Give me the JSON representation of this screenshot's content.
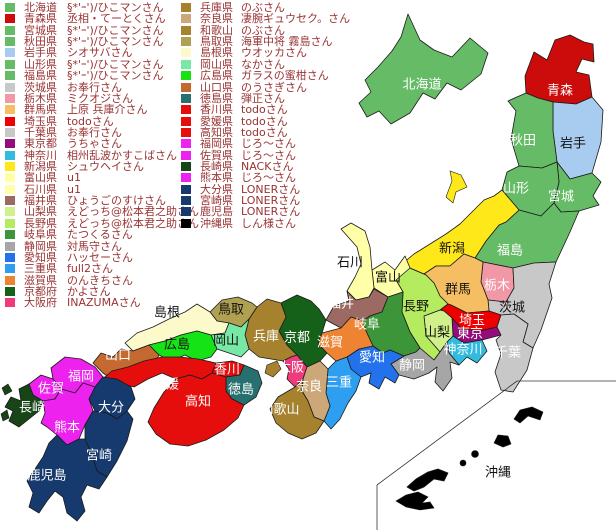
{
  "legend": {
    "text_color": "#993333",
    "columns": [
      {
        "items": [
          {
            "pref": "北海道",
            "owner": "§*'ｰ')/ひこマンさん",
            "color": "#66BB66"
          },
          {
            "pref": "青森県",
            "owner": "丞相・てーとくさん",
            "color": "#CC0B0B"
          },
          {
            "pref": "宮城県",
            "owner": "§*'ｰ')/ひこマンさん",
            "color": "#66BB66"
          },
          {
            "pref": "秋田県",
            "owner": "§*'ｰ')/ひこマンさん",
            "color": "#66BB66"
          },
          {
            "pref": "岩手県",
            "owner": "シオサバさん",
            "color": "#A8CCF0"
          },
          {
            "pref": "山形県",
            "owner": "§*'ｰ')/ひこマンさん",
            "color": "#66BB66"
          },
          {
            "pref": "福島県",
            "owner": "§*'ｰ')/ひこマンさん",
            "color": "#66BB66"
          },
          {
            "pref": "茨城県",
            "owner": "お奉行さん",
            "color": "#C8C8C8"
          },
          {
            "pref": "栃木県",
            "owner": "ミクオジさん",
            "color": "#F297A5"
          },
          {
            "pref": "群馬県",
            "owner": "上原 兵庫介さん",
            "color": "#F5BE62"
          },
          {
            "pref": "埼玉県",
            "owner": "todoさん",
            "color": "#EE0000"
          },
          {
            "pref": "千葉県",
            "owner": "お奉行さん",
            "color": "#C8C8C8"
          },
          {
            "pref": "東京都",
            "owner": "うちゃさん",
            "color": "#970C7C"
          },
          {
            "pref": "神奈川",
            "owner": "相州乱波かすこばさん",
            "color": "#33BBDD"
          },
          {
            "pref": "新潟県",
            "owner": "シュウヘイさん",
            "color": "#FFE81A"
          },
          {
            "pref": "富山県",
            "owner": "u1",
            "color": "#FFFFA8"
          },
          {
            "pref": "石川県",
            "owner": "u1",
            "color": "#FFFFA8"
          },
          {
            "pref": "福井県",
            "owner": "ひょうごのすけさん",
            "color": "#9C6A62"
          },
          {
            "pref": "山梨県",
            "owner": "えどっち@松本君之助さん",
            "color": "#CFF08A"
          },
          {
            "pref": "長野県",
            "owner": "えどっち@松本君之助さん",
            "color": "#B5EC5F"
          },
          {
            "pref": "岐阜県",
            "owner": "たつくるさん",
            "color": "#3C9639"
          },
          {
            "pref": "静岡県",
            "owner": "対馬守さん",
            "color": "#A6A6A6"
          },
          {
            "pref": "愛知県",
            "owner": "ハッセーさん",
            "color": "#2372EC"
          },
          {
            "pref": "三重県",
            "owner": "full2さん",
            "color": "#2E9FF0"
          },
          {
            "pref": "滋賀県",
            "owner": "のんきちさん",
            "color": "#EE8433"
          },
          {
            "pref": "京都府",
            "owner": "かよさん",
            "color": "#15611A"
          },
          {
            "pref": "大阪府",
            "owner": "INAZUMAさん",
            "color": "#EF3A7B"
          }
        ]
      },
      {
        "items": [
          {
            "pref": "兵庫県",
            "owner": "のぶさん",
            "color": "#A6812E"
          },
          {
            "pref": "奈良県",
            "owner": "凄腕ギュウセク。さん",
            "color": "#CCA878"
          },
          {
            "pref": "和歌山",
            "owner": "のぶさん",
            "color": "#A6812E"
          },
          {
            "pref": "鳥取県",
            "owner": "海軍中将 霧島さん",
            "color": "#B0A052"
          },
          {
            "pref": "島根県",
            "owner": "ウオッカさん",
            "color": "#FCF9CB"
          },
          {
            "pref": "岡山県",
            "owner": "なかさん",
            "color": "#77E8A5"
          },
          {
            "pref": "広島県",
            "owner": "ガラスの蜜柑さん",
            "color": "#16E316"
          },
          {
            "pref": "山口県",
            "owner": "のうさぎさん",
            "color": "#C4692F"
          },
          {
            "pref": "徳島県",
            "owner": "弾正さん",
            "color": "#287070"
          },
          {
            "pref": "香川県",
            "owner": "todoさん",
            "color": "#E60D0D"
          },
          {
            "pref": "愛媛県",
            "owner": "todoさん",
            "color": "#E60D0D"
          },
          {
            "pref": "高知県",
            "owner": "todoさん",
            "color": "#E60D0D"
          },
          {
            "pref": "福岡県",
            "owner": "じろ～さん",
            "color": "#EE22EE"
          },
          {
            "pref": "佐賀県",
            "owner": "じろ～さん",
            "color": "#EE22EE"
          },
          {
            "pref": "長崎県",
            "owner": "NACKさん",
            "color": "#174517"
          },
          {
            "pref": "熊本県",
            "owner": "じろ～さん",
            "color": "#EE22EE"
          },
          {
            "pref": "大分県",
            "owner": "LONERさん",
            "color": "#163A6E"
          },
          {
            "pref": "宮崎県",
            "owner": "LONERさん",
            "color": "#163A6E"
          },
          {
            "pref": "鹿児島",
            "owner": "LONERさん",
            "color": "#163A6E"
          },
          {
            "pref": "沖縄県",
            "owner": "しん様さん",
            "color": "#000000"
          }
        ]
      }
    ]
  },
  "map": {
    "border_color": "#1a1a1a",
    "regions": [
      {
        "id": "hokkaido",
        "label": "北海道",
        "color": "#66BB66",
        "label_color": "#FFFFFF"
      },
      {
        "id": "aomori",
        "label": "青森",
        "color": "#CC0B0B",
        "label_color": "#FFFFFF"
      },
      {
        "id": "iwate",
        "label": "岩手",
        "color": "#A8CCF0",
        "label_color": "#111111"
      },
      {
        "id": "akita",
        "label": "秋田",
        "color": "#66BB66",
        "label_color": "#FFFFFF"
      },
      {
        "id": "miyagi",
        "label": "宮城",
        "color": "#66BB66",
        "label_color": "#FFFFFF"
      },
      {
        "id": "yamagata",
        "label": "山形",
        "color": "#66BB66",
        "label_color": "#FFFFFF"
      },
      {
        "id": "fukushima",
        "label": "福島",
        "color": "#66BB66",
        "label_color": "#FFFFFF"
      },
      {
        "id": "niigata",
        "label": "新潟",
        "color": "#FFE81A",
        "label_color": "#111111"
      },
      {
        "id": "tochigi",
        "label": "栃木",
        "color": "#F297A5",
        "label_color": "#FFFFFF"
      },
      {
        "id": "ibaraki",
        "label": "茨城",
        "color": "#C8C8C8",
        "label_color": "#111111"
      },
      {
        "id": "gunma",
        "label": "群馬",
        "color": "#F5BE62",
        "label_color": "#111111"
      },
      {
        "id": "saitama",
        "label": "埼玉",
        "color": "#EE0000",
        "label_color": "#FFFFFF"
      },
      {
        "id": "tokyo",
        "label": "東京",
        "color": "#970C7C",
        "label_color": "#FFFFFF"
      },
      {
        "id": "kanagawa",
        "label": "神奈川",
        "color": "#33BBDD",
        "label_color": "#FFFFFF"
      },
      {
        "id": "chiba",
        "label": "千葉",
        "color": "#C8C8C8",
        "label_color": "#FFFFFF"
      },
      {
        "id": "yamanashi",
        "label": "山梨",
        "color": "#CFF08A",
        "label_color": "#111111"
      },
      {
        "id": "nagano",
        "label": "長野",
        "color": "#B5EC5F",
        "label_color": "#111111"
      },
      {
        "id": "toyama",
        "label": "富山",
        "color": "#FFFFA8",
        "label_color": "#111111"
      },
      {
        "id": "ishikawa",
        "label": "石川",
        "color": "#FFFFA8",
        "label_color": "#111111"
      },
      {
        "id": "fukui",
        "label": "福井",
        "color": "#9C6A62",
        "label_color": "#FFFFFF"
      },
      {
        "id": "gifu",
        "label": "岐阜",
        "color": "#3C9639",
        "label_color": "#FFFFFF"
      },
      {
        "id": "shizuoka",
        "label": "静岡",
        "color": "#A6A6A6",
        "label_color": "#FFFFFF"
      },
      {
        "id": "aichi",
        "label": "愛知",
        "color": "#2372EC",
        "label_color": "#FFFFFF"
      },
      {
        "id": "mie",
        "label": "三重",
        "color": "#2E9FF0",
        "label_color": "#FFFFFF"
      },
      {
        "id": "shiga",
        "label": "滋賀",
        "color": "#EE8433",
        "label_color": "#FFFFFF"
      },
      {
        "id": "kyoto",
        "label": "京都",
        "color": "#15611A",
        "label_color": "#FFFFFF"
      },
      {
        "id": "hyogo",
        "label": "兵庫",
        "color": "#A6812E",
        "label_color": "#FFFFFF"
      },
      {
        "id": "osaka",
        "label": "大阪",
        "color": "#EF3A7B",
        "label_color": "#FFFFFF"
      },
      {
        "id": "nara",
        "label": "奈良",
        "color": "#CCA878",
        "label_color": "#FFFFFF"
      },
      {
        "id": "wakayama",
        "label": "和歌山",
        "color": "#A6812E",
        "label_color": "#FFFFFF"
      },
      {
        "id": "tottori",
        "label": "鳥取",
        "color": "#B0A052",
        "label_color": "#111111"
      },
      {
        "id": "shimane",
        "label": "島根",
        "color": "#FCF9CB",
        "label_color": "#111111"
      },
      {
        "id": "okayama",
        "label": "岡山",
        "color": "#77E8A5",
        "label_color": "#111111"
      },
      {
        "id": "hiroshima",
        "label": "広島",
        "color": "#16E316",
        "label_color": "#111111"
      },
      {
        "id": "yamaguchi",
        "label": "山口",
        "color": "#C4692F",
        "label_color": "#FFFFFF"
      },
      {
        "id": "kagawa",
        "label": "香川",
        "color": "#E60D0D",
        "label_color": "#FFFFFF"
      },
      {
        "id": "tokushima",
        "label": "徳島",
        "color": "#287070",
        "label_color": "#FFFFFF"
      },
      {
        "id": "ehime",
        "label": "愛媛",
        "color": "#E60D0D",
        "label_color": "#FFFFFF"
      },
      {
        "id": "kochi",
        "label": "高知",
        "color": "#E60D0D",
        "label_color": "#FFFFFF"
      },
      {
        "id": "fukuoka",
        "label": "福岡",
        "color": "#EE22EE",
        "label_color": "#FFFFFF"
      },
      {
        "id": "saga",
        "label": "佐賀",
        "color": "#EE22EE",
        "label_color": "#FFFFFF"
      },
      {
        "id": "nagasaki",
        "label": "長崎",
        "color": "#174517",
        "label_color": "#FFFFFF"
      },
      {
        "id": "kumamoto",
        "label": "熊本",
        "color": "#EE22EE",
        "label_color": "#FFFFFF"
      },
      {
        "id": "oita",
        "label": "大分",
        "color": "#163A6E",
        "label_color": "#FFFFFF"
      },
      {
        "id": "miyazaki",
        "label": "宮崎",
        "color": "#163A6E",
        "label_color": "#FFFFFF"
      },
      {
        "id": "kagoshima",
        "label": "鹿児島",
        "color": "#163A6E",
        "label_color": "#FFFFFF"
      },
      {
        "id": "okinawa",
        "label": "沖縄",
        "color": "#000000",
        "label_color": "#111111"
      }
    ]
  }
}
